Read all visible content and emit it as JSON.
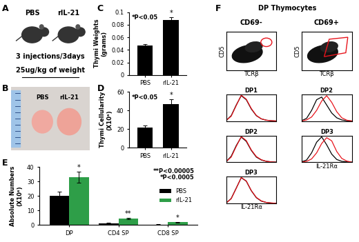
{
  "panel_letters": [
    "A",
    "B",
    "C",
    "D",
    "E",
    "F"
  ],
  "panel_a": {
    "groups": [
      "PBS",
      "rIL-21"
    ],
    "protocol": [
      "3 injections/3days",
      "25ug/kg of weight"
    ]
  },
  "panel_b": {
    "labels": [
      "PBS",
      "rIL-21"
    ]
  },
  "chart_data": [
    {
      "type": "bar",
      "y_label": "Thymi Weights\n(grams)",
      "categories": [
        "PBS",
        "rIL-21"
      ],
      "values": [
        0.047,
        0.087
      ],
      "errors": [
        0.002,
        0.005
      ],
      "stars": [
        null,
        "*"
      ],
      "color": "#000000",
      "ylim": [
        0,
        0.1
      ],
      "yticks": [
        0,
        0.02,
        0.04,
        0.06,
        0.08,
        0.1
      ],
      "annotations": [
        "*P<0.05"
      ]
    },
    {
      "type": "bar",
      "y_label": "Thymi Cellularity\n(X10⁶)",
      "categories": [
        "PBS",
        "rIL-21"
      ],
      "values": [
        22,
        47
      ],
      "errors": [
        2,
        5
      ],
      "stars": [
        null,
        "*"
      ],
      "color": "#000000",
      "ylim": [
        0,
        60
      ],
      "yticks": [
        0,
        20,
        40,
        60
      ],
      "annotations": [
        "*P<0.05"
      ]
    },
    {
      "type": "bar",
      "y_label": "Absolute Numbers\n(X10⁶)",
      "categories": [
        "DP",
        "CD4 SP",
        "CD8 SP"
      ],
      "series": [
        {
          "name": "PBS",
          "color": "#000000",
          "values": [
            20,
            1.2,
            0.4
          ],
          "errors": [
            3,
            0.2,
            0.1
          ],
          "stars": [
            null,
            null,
            null
          ]
        },
        {
          "name": "rIL-21",
          "color": "#2e9e48",
          "values": [
            33,
            4.5,
            2
          ],
          "errors": [
            4,
            0.4,
            0.3
          ],
          "stars": [
            "*",
            "**",
            "*"
          ]
        }
      ],
      "ylim": [
        0,
        40
      ],
      "yticks": [
        0,
        10,
        20,
        30,
        40
      ],
      "legend": "center right",
      "annotations": [
        "**P<0.00005",
        "*P<0.0005"
      ]
    }
  ],
  "panel_f": {
    "title": "DP Thymocytes",
    "columns": [
      {
        "name": "CD69-",
        "scatter_x_label": "TCRβ",
        "scatter_y_label": "CD5",
        "hist_x_label": "IL-21Rα",
        "histograms": [
          {
            "title": "DP1",
            "type": "line",
            "x": [
              0,
              1,
              2,
              3,
              4,
              5,
              6,
              7,
              8,
              9,
              10
            ],
            "xlim": [
              0,
              10
            ],
            "ylim": [
              0,
              100
            ],
            "tick_labels": false,
            "series": [
              {
                "color": "#000000",
                "values": [
                  2,
                  20,
                  60,
                  95,
                  80,
                  45,
                  20,
                  8,
                  3,
                  1,
                  0
                ]
              },
              {
                "color": "#e8141c",
                "values": [
                  2,
                  18,
                  58,
                  97,
                  82,
                  47,
                  21,
                  8,
                  3,
                  1,
                  0
                ]
              }
            ]
          },
          {
            "title": "DP2",
            "type": "line",
            "x": [
              0,
              1,
              2,
              3,
              4,
              5,
              6,
              7,
              8,
              9,
              10
            ],
            "xlim": [
              0,
              10
            ],
            "ylim": [
              0,
              100
            ],
            "tick_labels": false,
            "series": [
              {
                "color": "#000000",
                "values": [
                  2,
                  22,
                  62,
                  94,
                  78,
                  44,
                  19,
                  8,
                  3,
                  1,
                  0
                ]
              },
              {
                "color": "#e8141c",
                "values": [
                  2,
                  19,
                  59,
                  96,
                  81,
                  46,
                  21,
                  9,
                  3,
                  1,
                  0
                ]
              }
            ]
          },
          {
            "title": "DP3",
            "type": "line",
            "x": [
              0,
              1,
              2,
              3,
              4,
              5,
              6,
              7,
              8,
              9,
              10
            ],
            "xlim": [
              0,
              10
            ],
            "ylim": [
              0,
              100
            ],
            "tick_labels": false,
            "series": [
              {
                "color": "#000000",
                "values": [
                  1,
                  18,
                  57,
                  96,
                  83,
                  47,
                  21,
                  8,
                  3,
                  1,
                  0
                ]
              },
              {
                "color": "#e8141c",
                "values": [
                  1,
                  17,
                  56,
                  97,
                  84,
                  48,
                  22,
                  9,
                  3,
                  1,
                  0
                ]
              }
            ]
          }
        ]
      },
      {
        "name": "CD69+",
        "scatter_x_label": "TCRβ",
        "scatter_y_label": "CD5",
        "hist_x_label": "IL-21Rα",
        "histograms": [
          {
            "title": "DP2",
            "type": "line",
            "x": [
              0,
              1,
              2,
              3,
              4,
              5,
              6,
              7,
              8,
              9,
              10
            ],
            "xlim": [
              0,
              10
            ],
            "ylim": [
              0,
              100
            ],
            "tick_labels": false,
            "series": [
              {
                "color": "#000000",
                "values": [
                  1,
                  10,
                  40,
                  80,
                  90,
                  60,
                  30,
                  12,
                  4,
                  1,
                  0
                ]
              },
              {
                "color": "#e8141c",
                "values": [
                  0,
                  4,
                  15,
                  40,
                  75,
                  95,
                  70,
                  35,
                  12,
                  3,
                  0
                ]
              }
            ]
          },
          {
            "title": "DP3",
            "type": "line",
            "x": [
              0,
              1,
              2,
              3,
              4,
              5,
              6,
              7,
              8,
              9,
              10
            ],
            "xlim": [
              0,
              10
            ],
            "ylim": [
              0,
              100
            ],
            "tick_labels": false,
            "series": [
              {
                "color": "#000000",
                "values": [
                  1,
                  8,
                  35,
                  75,
                  95,
                  65,
                  30,
                  10,
                  3,
                  1,
                  0
                ]
              },
              {
                "color": "#e8141c",
                "values": [
                  0,
                  3,
                  12,
                  35,
                  70,
                  92,
                  80,
                  40,
                  14,
                  4,
                  0
                ]
              }
            ]
          }
        ]
      }
    ]
  }
}
